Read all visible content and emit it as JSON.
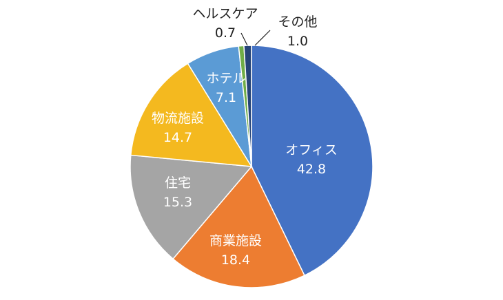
{
  "chart_data": {
    "type": "pie",
    "slices": [
      {
        "label": "オフィス",
        "value": 42.8,
        "color": "#4472c4",
        "label_pos": "inside"
      },
      {
        "label": "商業施設",
        "value": 18.4,
        "color": "#ed7d31",
        "label_pos": "inside"
      },
      {
        "label": "住宅",
        "value": 15.3,
        "color": "#a5a5a5",
        "label_pos": "inside"
      },
      {
        "label": "物流施設",
        "value": 14.7,
        "color": "#f4b91f",
        "label_pos": "inside"
      },
      {
        "label": "ホテル",
        "value": 7.1,
        "color": "#5b9bd5",
        "label_pos": "inside"
      },
      {
        "label": "ヘルスケア",
        "value": 0.7,
        "color": "#70ad47",
        "label_pos": "outside"
      },
      {
        "label": "その他",
        "value": 1.0,
        "color": "#264478",
        "label_pos": "outside"
      }
    ],
    "start": "12 o'clock",
    "direction": "clockwise"
  }
}
